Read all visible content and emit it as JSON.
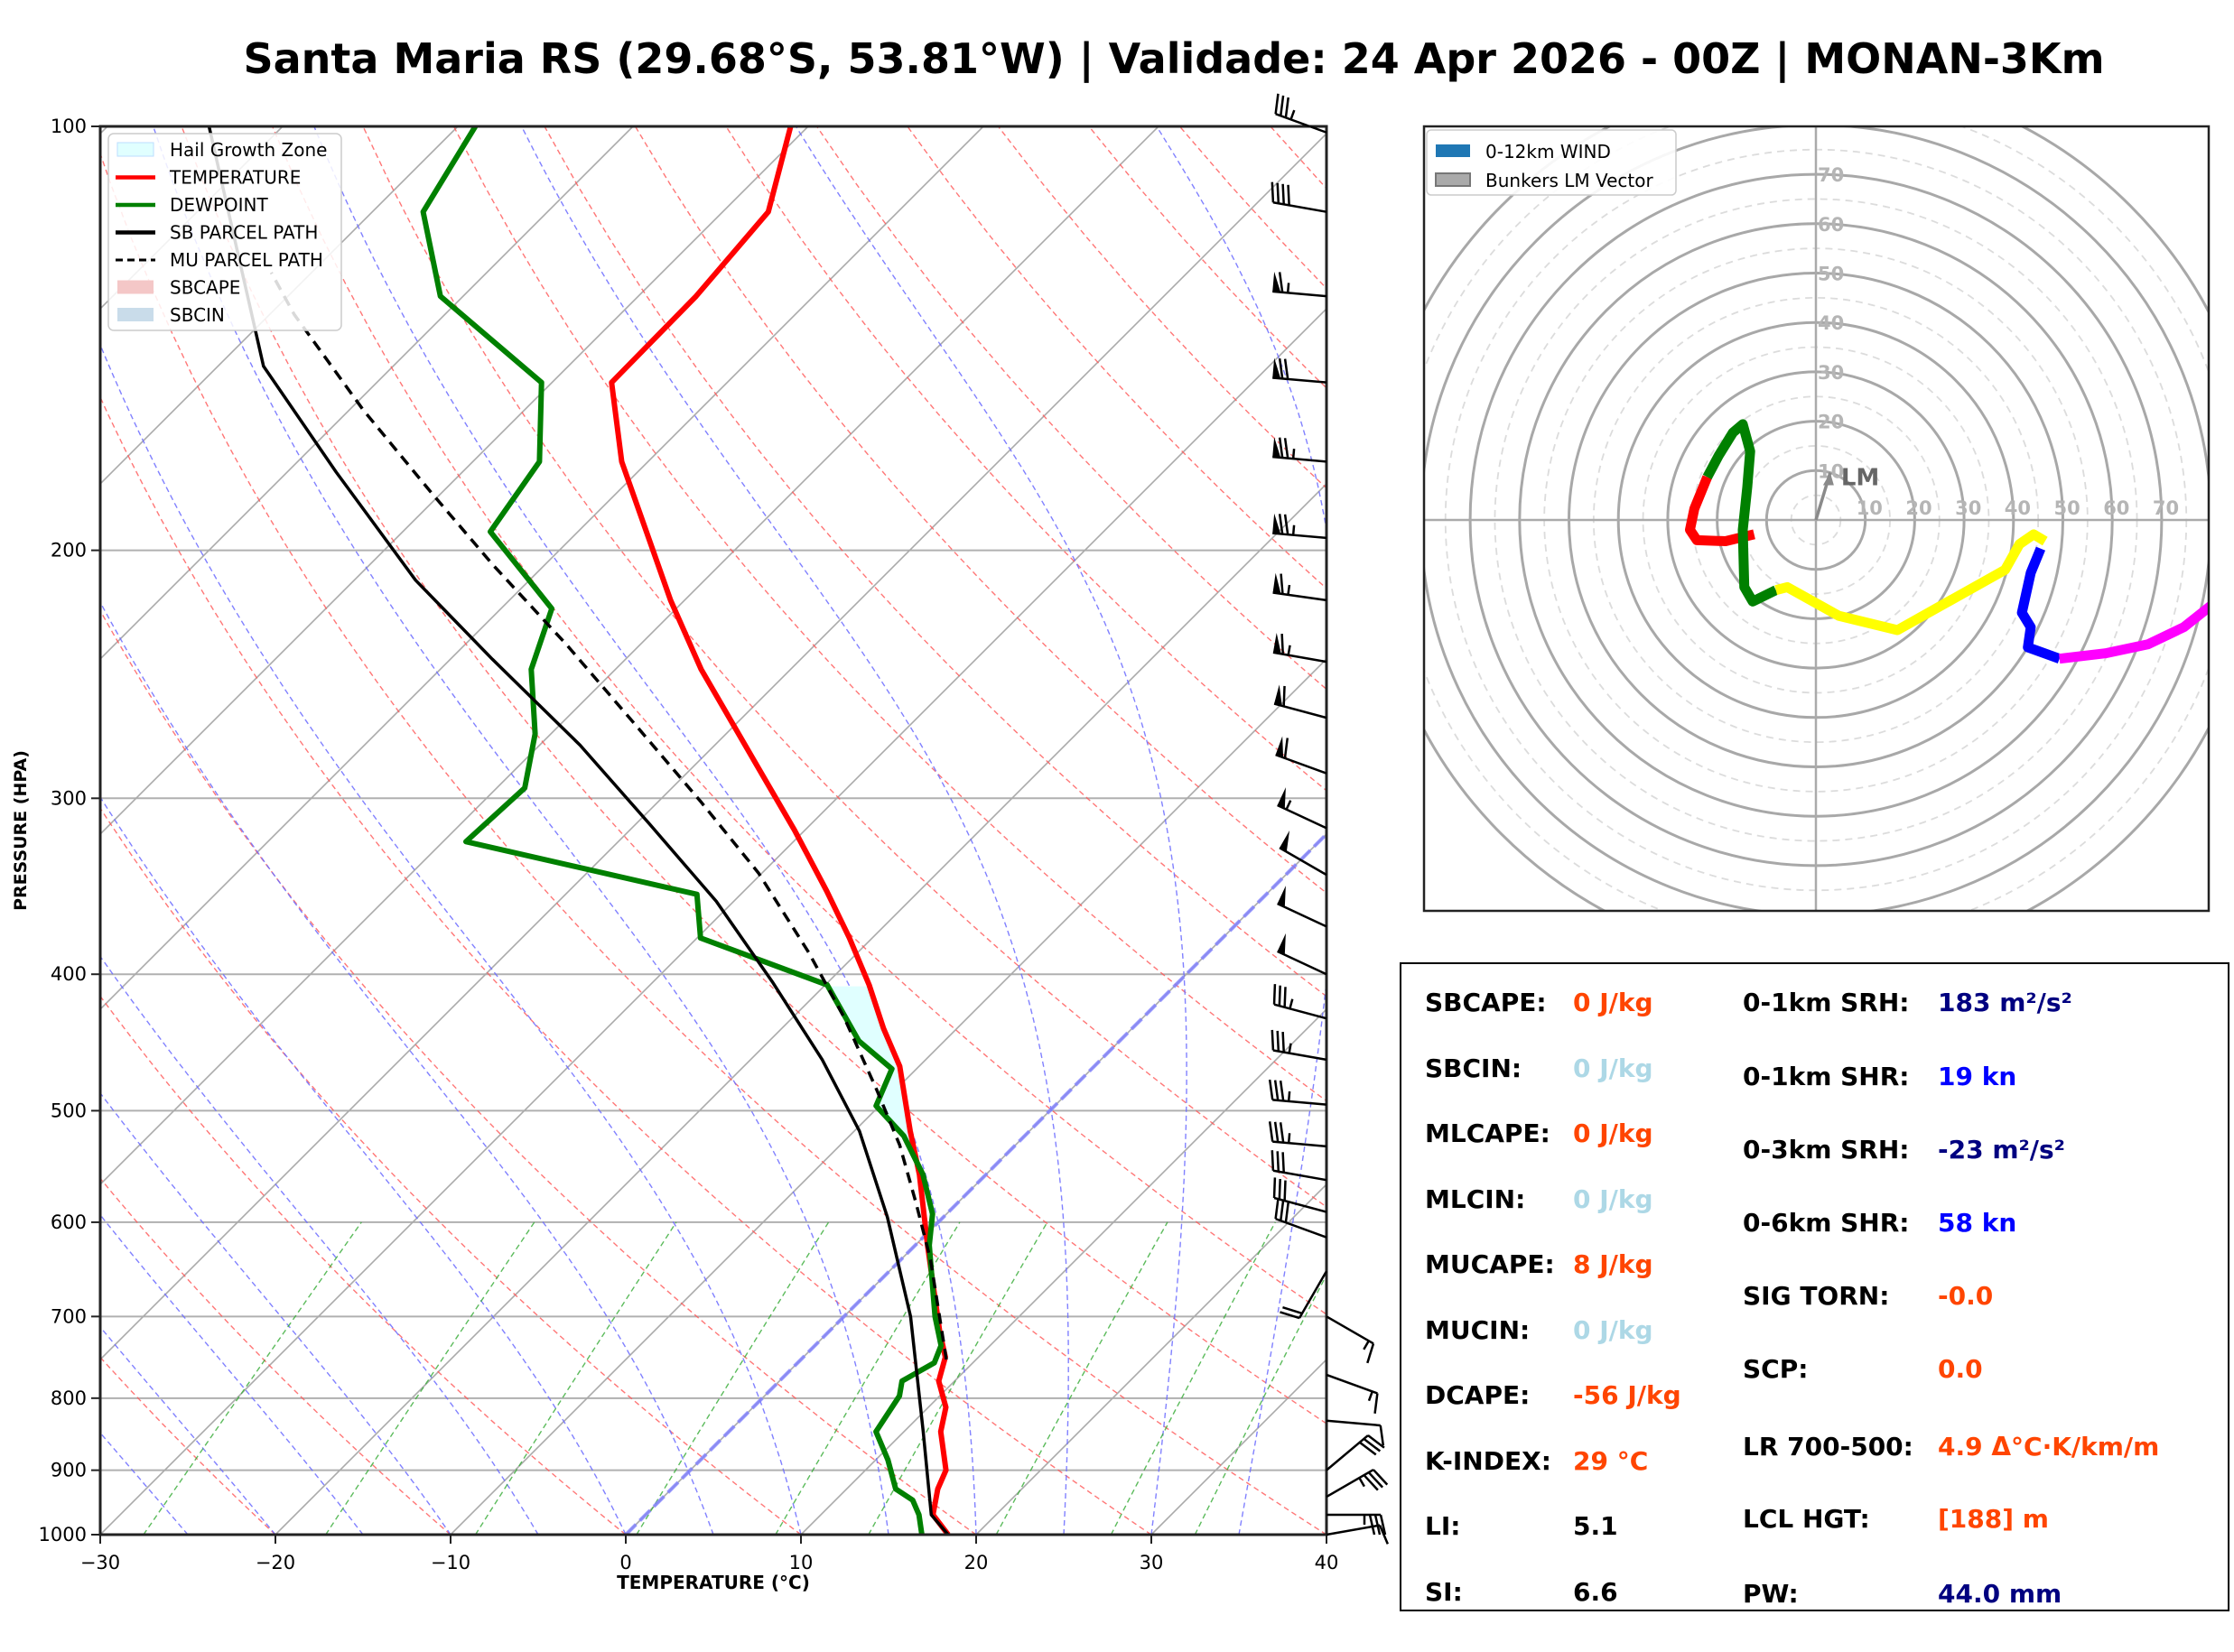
{
  "title": "Santa Maria RS (29.68°S, 53.81°W) | Validade: 24 Apr 2026 - 00Z | MONAN-3Km",
  "chart_data": [
    {
      "type": "line",
      "subtype": "skew-t log-p",
      "xlabel": "TEMPERATURE (°C)",
      "ylabel": "PRESSURE (HPA)",
      "xlim": [
        -30,
        40
      ],
      "ylim": [
        1000,
        100
      ],
      "xticks": [
        "−30",
        "−20",
        "−10",
        "0",
        "10",
        "20",
        "30",
        "40"
      ],
      "xtick_values": [
        -30,
        -20,
        -10,
        0,
        10,
        20,
        30,
        40
      ],
      "yticks": [
        "100",
        "200",
        "300",
        "400",
        "500",
        "600",
        "700",
        "800",
        "900",
        "1000"
      ],
      "ytick_values": [
        100,
        200,
        300,
        400,
        500,
        600,
        700,
        800,
        900,
        1000
      ],
      "grid": true,
      "legend_position": "top-left",
      "legend": [
        {
          "label": "Hail Growth Zone",
          "color": "#e0ffff",
          "style": "patch"
        },
        {
          "label": "TEMPERATURE",
          "color": "#ff0000",
          "style": "line"
        },
        {
          "label": "DEWPOINT",
          "color": "#008000",
          "style": "line"
        },
        {
          "label": "SB PARCEL PATH",
          "color": "#000000",
          "style": "line"
        },
        {
          "label": "MU PARCEL PATH",
          "color": "#000000",
          "style": "dashed"
        },
        {
          "label": "SBCAPE",
          "color": "#f4c7c7",
          "style": "patch"
        },
        {
          "label": "SBCIN",
          "color": "#c9dcea",
          "style": "patch"
        }
      ],
      "series": [
        {
          "name": "TEMPERATURE",
          "color": "#ff0000",
          "p": [
            1000,
            968,
            928,
            900,
            845,
            812,
            778,
            748,
            717,
            623,
            555,
            517,
            465,
            437,
            407,
            377,
            349,
            316,
            285,
            243,
            217,
            173,
            152,
            132,
            115,
            100
          ],
          "t": [
            18.4,
            16.4,
            15.2,
            14.6,
            12.1,
            11.0,
            9.1,
            8.1,
            6.3,
            0.7,
            -3.8,
            -6.8,
            -11.1,
            -14.2,
            -17.5,
            -21.3,
            -25.3,
            -30.6,
            -36.3,
            -45.1,
            -50.8,
            -61.5,
            -66.6,
            -66.7,
            -67.4,
            -71.0
          ]
        },
        {
          "name": "DEWPOINT",
          "color": "#008000",
          "p": [
            1000,
            968,
            945,
            928,
            885,
            845,
            797,
            778,
            755,
            734,
            700,
            623,
            592,
            555,
            521,
            496,
            467,
            446,
            407,
            377,
            351,
            322,
            295,
            270,
            243,
            220,
            194,
            173,
            152,
            132,
            115,
            100
          ],
          "t": [
            16.9,
            15.6,
            14.4,
            12.8,
            10.7,
            8.4,
            7.7,
            7.0,
            7.8,
            7.2,
            5.2,
            0.8,
            -0.8,
            -3.6,
            -6.9,
            -10.2,
            -11.4,
            -14.9,
            -19.9,
            -29.8,
            -32.5,
            -48.7,
            -48.4,
            -50.9,
            -54.8,
            -57.1,
            -65.0,
            -66.2,
            -70.6,
            -81.3,
            -87.1,
            -89.0
          ]
        },
        {
          "name": "SB PARCEL PATH",
          "color": "#000000",
          "p": [
            1000,
            968,
            845,
            700,
            595,
            517,
            460,
            405,
            355,
            313,
            275,
            239,
            210,
            176,
            148,
            100
          ],
          "t": [
            18.4,
            16.3,
            11.1,
            3.8,
            -3.2,
            -9.7,
            -15.9,
            -23.2,
            -31.0,
            -39.2,
            -47.7,
            -57.6,
            -66.5,
            -77.2,
            -87.4,
            -104.2
          ]
        },
        {
          "name": "MU PARCEL PATH",
          "color": "#000000",
          "dashed": true,
          "p": [
            751,
            638,
            581,
            529,
            482,
            429,
            386,
            339,
            302,
            266,
            233,
            205,
            182,
            159,
            136,
            127
          ],
          "t": [
            8.3,
            1.7,
            -2.4,
            -6.6,
            -11.2,
            -17.1,
            -22.8,
            -30.2,
            -37.5,
            -45.7,
            -54.3,
            -62.9,
            -70.6,
            -79.2,
            -88.6,
            -92.3
          ]
        }
      ],
      "hail_growth_zone": {
        "p_bottom": 555,
        "p_top": 407,
        "color": "#e0ffff"
      },
      "wind_barbs": [
        {
          "p": 101,
          "dir": 290,
          "speed": 35
        },
        {
          "p": 115,
          "dir": 280,
          "speed": 40
        },
        {
          "p": 132,
          "dir": 275,
          "speed": 65
        },
        {
          "p": 152,
          "dir": 275,
          "speed": 70
        },
        {
          "p": 173,
          "dir": 275,
          "speed": 75
        },
        {
          "p": 196,
          "dir": 275,
          "speed": 75
        },
        {
          "p": 217,
          "dir": 278,
          "speed": 65
        },
        {
          "p": 240,
          "dir": 280,
          "speed": 65
        },
        {
          "p": 263,
          "dir": 285,
          "speed": 60
        },
        {
          "p": 288,
          "dir": 290,
          "speed": 60
        },
        {
          "p": 315,
          "dir": 295,
          "speed": 55
        },
        {
          "p": 340,
          "dir": 300,
          "speed": 50
        },
        {
          "p": 370,
          "dir": 295,
          "speed": 50
        },
        {
          "p": 400,
          "dir": 295,
          "speed": 50
        },
        {
          "p": 430,
          "dir": 285,
          "speed": 35
        },
        {
          "p": 460,
          "dir": 280,
          "speed": 35
        },
        {
          "p": 495,
          "dir": 275,
          "speed": 35
        },
        {
          "p": 530,
          "dir": 275,
          "speed": 35
        },
        {
          "p": 560,
          "dir": 280,
          "speed": 30
        },
        {
          "p": 590,
          "dir": 285,
          "speed": 30
        },
        {
          "p": 615,
          "dir": 290,
          "speed": 30
        },
        {
          "p": 650,
          "dir": 210,
          "speed": 20
        },
        {
          "p": 700,
          "dir": 120,
          "speed": 15
        },
        {
          "p": 770,
          "dir": 110,
          "speed": 15
        },
        {
          "p": 830,
          "dir": 95,
          "speed": 10
        },
        {
          "p": 900,
          "dir": 50,
          "speed": 30
        },
        {
          "p": 940,
          "dir": 60,
          "speed": 35
        },
        {
          "p": 968,
          "dir": 90,
          "speed": 35
        },
        {
          "p": 1000,
          "dir": 80,
          "speed": 10
        }
      ]
    },
    {
      "type": "line",
      "subtype": "hodograph",
      "units": "kn",
      "rings": [
        10,
        20,
        30,
        40,
        50,
        60,
        70
      ],
      "ring_labels": [
        "10",
        "20",
        "30",
        "40",
        "50",
        "60",
        "70"
      ],
      "xlim": [
        -80,
        80
      ],
      "ylim": [
        -80,
        80
      ],
      "legend_position": "top-left",
      "legend": [
        {
          "label": "0-12km WIND",
          "color": "#1f77b4"
        },
        {
          "label": "Bunkers LM Vector",
          "color": "#aaaaaa"
        }
      ],
      "segments": [
        {
          "color": "#ff0000",
          "u": [
            -12.5,
            -18.3,
            -24.1,
            -25.5,
            -24.6,
            -22.0
          ],
          "v": [
            -2.9,
            -4.3,
            -4.1,
            -2.0,
            2.3,
            8.7
          ]
        },
        {
          "color": "#008000",
          "u": [
            -22.0,
            -19.7,
            -16.8,
            -14.8,
            -13.3,
            -13.9,
            -14.8,
            -14.5,
            -12.8,
            -8.1
          ],
          "v": [
            8.7,
            13.0,
            17.7,
            19.4,
            13.9,
            6.7,
            -2.0,
            -13.6,
            -16.5,
            -14.2
          ]
        },
        {
          "color": "#ffff00",
          "u": [
            -8.1,
            -5.8,
            4.6,
            16.5,
            38.3,
            41.2,
            44.1,
            46.4
          ],
          "v": [
            -14.2,
            -13.6,
            -19.4,
            -22.3,
            -10.1,
            -4.9,
            -2.9,
            -4.3
          ]
        },
        {
          "color": "#0000ff",
          "u": [
            45.5,
            43.5,
            41.7,
            43.5,
            42.9,
            49.3
          ],
          "v": [
            -5.8,
            -10.7,
            -18.8,
            -21.7,
            -25.8,
            -28.1
          ]
        },
        {
          "color": "#ff00ff",
          "u": [
            49.3,
            58.6,
            67.2,
            74.5,
            80.3
          ],
          "v": [
            -28.1,
            -27.0,
            -25.2,
            -21.7,
            -17.1
          ]
        }
      ],
      "lm_vector": {
        "u": 2.9,
        "v": 9.6,
        "label": "LM"
      }
    }
  ],
  "stats": {
    "left": [
      {
        "label": "SBCAPE:",
        "value": "0 J/kg",
        "color": "#ff4500"
      },
      {
        "label": "SBCIN:",
        "value": "0 J/kg",
        "color": "#add8e6"
      },
      {
        "label": "MLCAPE:",
        "value": "0 J/kg",
        "color": "#ff4500"
      },
      {
        "label": "MLCIN:",
        "value": "0 J/kg",
        "color": "#add8e6"
      },
      {
        "label": "MUCAPE:",
        "value": "8 J/kg",
        "color": "#ff4500"
      },
      {
        "label": "MUCIN:",
        "value": "0 J/kg",
        "color": "#add8e6"
      },
      {
        "label": "DCAPE:",
        "value": "-56 J/kg",
        "color": "#ff4500"
      },
      {
        "label": "K-INDEX:",
        "value": "29 °C",
        "color": "#ff4500"
      },
      {
        "label": "LI:",
        "value": "5.1",
        "color": "#000000"
      },
      {
        "label": "SI:",
        "value": "6.6",
        "color": "#000000"
      }
    ],
    "right": [
      {
        "label": "0-1km SRH:",
        "value": "183 m²/s²",
        "color": "#000080"
      },
      {
        "label": "0-1km SHR:",
        "value": "19 kn",
        "color": "#0000ff"
      },
      {
        "label": "0-3km SRH:",
        "value": "-23 m²/s²",
        "color": "#000080"
      },
      {
        "label": "0-6km SHR:",
        "value": "58 kn",
        "color": "#0000ff"
      },
      {
        "label": "SIG TORN:",
        "value": "-0.0",
        "color": "#ff4500"
      },
      {
        "label": "SCP:",
        "value": "0.0",
        "color": "#ff4500"
      },
      {
        "label": "LR 700-500:",
        "value": "4.9 Δ°C·K/km/m",
        "color": "#ff4500"
      },
      {
        "label": "LCL HGT:",
        "value": "[188] m",
        "color": "#ff4500"
      },
      {
        "label": "PW:",
        "value": "44.0 mm",
        "color": "#000080"
      }
    ]
  }
}
